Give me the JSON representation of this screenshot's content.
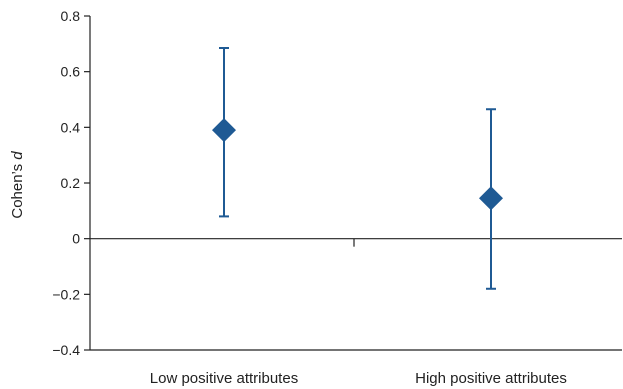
{
  "chart_data": {
    "type": "scatter",
    "title": "",
    "xlabel": "",
    "ylabel": "Cohen's d",
    "ylabel_parts": [
      "Cohen’s ",
      "d"
    ],
    "ylim": [
      -0.4,
      0.8
    ],
    "yticks": [
      -0.4,
      -0.2,
      0,
      0.2,
      0.4,
      0.6,
      0.8
    ],
    "ytick_labels": [
      "−0.4",
      "−0.2",
      "0",
      "0.2",
      "0.4",
      "0.6",
      "0.8"
    ],
    "categories": [
      "Low positive attributes",
      "High positive attributes"
    ],
    "values": [
      0.39,
      0.145
    ],
    "error_low": [
      0.08,
      -0.18
    ],
    "error_high": [
      0.685,
      0.465
    ],
    "marker": "diamond",
    "marker_color": "#1f5a94",
    "errorbar_color": "#1f5a94",
    "zero_line": true,
    "grid": false,
    "legend": "none"
  }
}
